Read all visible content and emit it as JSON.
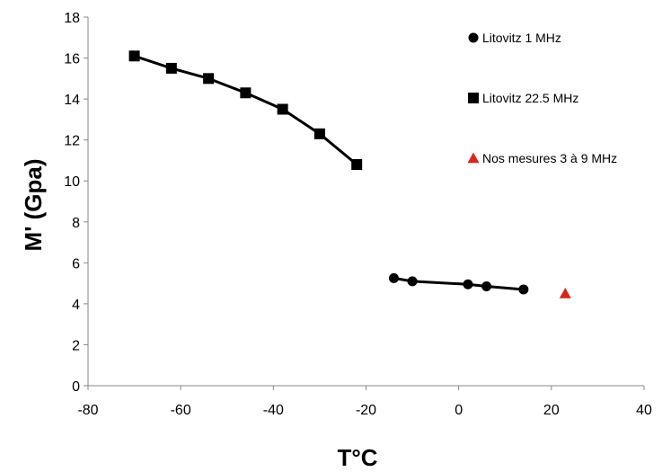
{
  "chart_data": {
    "type": "scatter",
    "xlabel": "T°C",
    "ylabel": "M' (Gpa)",
    "xlim": [
      -80,
      40
    ],
    "ylim": [
      0,
      18
    ],
    "xticks": [
      -80,
      -60,
      -40,
      -20,
      0,
      20,
      40
    ],
    "yticks": [
      0,
      2,
      4,
      6,
      8,
      10,
      12,
      14,
      16,
      18
    ],
    "grid": false,
    "legend_position": "top-right",
    "series": [
      {
        "name": "Litovitz 1 MHz",
        "marker": "circle",
        "color": "#000000",
        "connected": true,
        "points": [
          [
            -14,
            5.25
          ],
          [
            -10,
            5.1
          ],
          [
            2,
            4.95
          ],
          [
            6,
            4.85
          ],
          [
            14,
            4.7
          ]
        ]
      },
      {
        "name": "Litovitz 22.5 MHz",
        "marker": "square",
        "color": "#000000",
        "connected": true,
        "points": [
          [
            -70,
            16.1
          ],
          [
            -62,
            15.5
          ],
          [
            -54,
            15.0
          ],
          [
            -46,
            14.3
          ],
          [
            -38,
            13.5
          ],
          [
            -30,
            12.3
          ],
          [
            -22,
            10.8
          ]
        ]
      },
      {
        "name": "Nos mesures 3 à 9 MHz",
        "marker": "triangle",
        "color": "#d9261c",
        "connected": false,
        "points": [
          [
            23,
            4.5
          ]
        ]
      }
    ]
  }
}
